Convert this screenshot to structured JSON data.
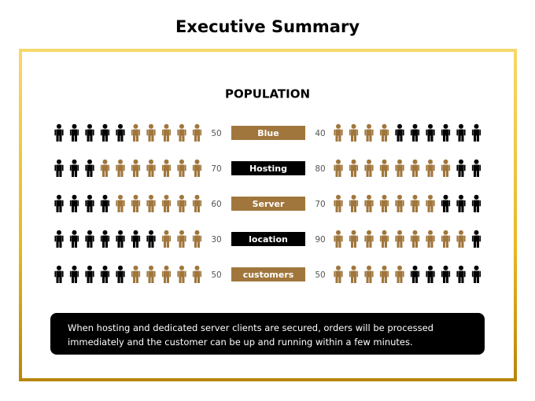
{
  "header": {
    "title": "Executive Summary"
  },
  "chart_data": {
    "type": "pictograph",
    "title": "POPULATION",
    "categories": [
      "Blue",
      "Hosting",
      "Server",
      "location",
      "customers"
    ],
    "series": [
      {
        "values": [
          50,
          70,
          60,
          30,
          50
        ],
        "color": "#a0763c"
      },
      {
        "values": [
          40,
          80,
          70,
          90,
          50
        ],
        "color": "#a0763c"
      }
    ],
    "empty_color": "#000000",
    "xlim": [
      0,
      100
    ]
  },
  "note": "When hosting and dedicated server clients are secured, orders will be processed immediately and the customer can be up and running within a few minutes."
}
